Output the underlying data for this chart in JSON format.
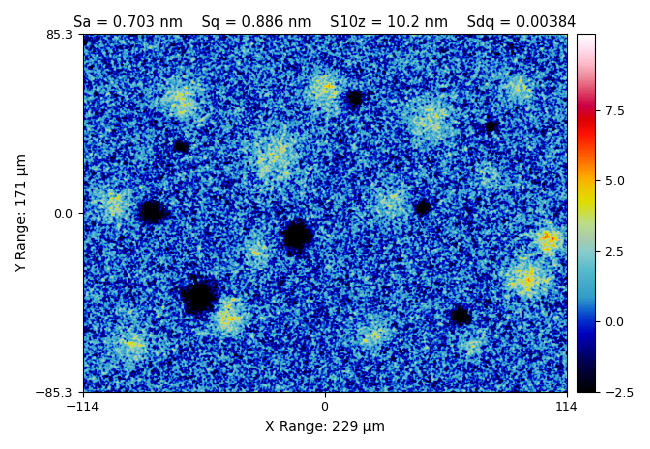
{
  "title": "Sa = 0.703 nm    Sq = 0.886 nm    S10z = 10.2 nm    Sdq = 0.00384",
  "xlabel": "X Range: 229 μm",
  "ylabel": "Y Range: 171 μm",
  "xlim": [
    -114,
    114
  ],
  "ylim": [
    -85.3,
    85.3
  ],
  "xticks": [
    -114,
    0,
    114
  ],
  "yticks": [
    -85.3,
    0,
    85.3
  ],
  "colorbar_ticks": [
    -2.5,
    0,
    2.5,
    5,
    7.5
  ],
  "vmin": -2.5,
  "vmax": 10.2,
  "seed": 42,
  "nx": 500,
  "ny": 380,
  "title_fontsize": 10.5,
  "axis_label_fontsize": 10,
  "tick_fontsize": 9,
  "colorbar_label_fontsize": 9,
  "colormap_nodes": [
    [
      0.0,
      "#000000"
    ],
    [
      0.05,
      "#000030"
    ],
    [
      0.1,
      "#00006a"
    ],
    [
      0.16,
      "#0000bb"
    ],
    [
      0.2,
      "#0033cc"
    ],
    [
      0.23,
      "#1166cc"
    ],
    [
      0.26,
      "#3399cc"
    ],
    [
      0.3,
      "#44aacc"
    ],
    [
      0.34,
      "#55bbcc"
    ],
    [
      0.39,
      "#88cccc"
    ],
    [
      0.43,
      "#aaccaa"
    ],
    [
      0.47,
      "#bbdd88"
    ],
    [
      0.5,
      "#ccdd44"
    ],
    [
      0.53,
      "#dddd00"
    ],
    [
      0.56,
      "#eecc00"
    ],
    [
      0.6,
      "#ffaa00"
    ],
    [
      0.64,
      "#ff7700"
    ],
    [
      0.68,
      "#ff4400"
    ],
    [
      0.72,
      "#ff1100"
    ],
    [
      0.76,
      "#dd0000"
    ],
    [
      0.8,
      "#cc0044"
    ],
    [
      0.84,
      "#dd4466"
    ],
    [
      0.88,
      "#ee8899"
    ],
    [
      0.92,
      "#ffbbcc"
    ],
    [
      0.96,
      "#ffddee"
    ],
    [
      1.0,
      "#ffffff"
    ]
  ]
}
